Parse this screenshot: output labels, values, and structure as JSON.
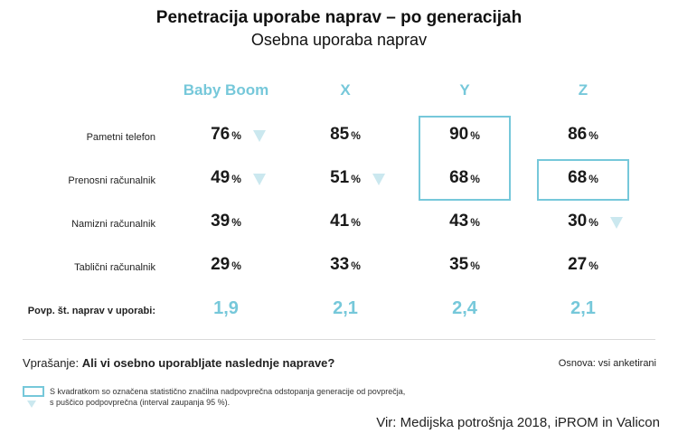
{
  "title": "Penetracija uporabe naprav – po generacijah",
  "subtitle": "Osebna uporaba naprav",
  "chart_data": {
    "type": "table",
    "columns": [
      "Baby Boom",
      "X",
      "Y",
      "Z"
    ],
    "rows": [
      {
        "label": "Pametni telefon",
        "values": [
          76,
          85,
          90,
          86
        ],
        "below_avg": [
          true,
          false,
          false,
          false
        ],
        "above_avg": [
          false,
          false,
          true,
          false
        ]
      },
      {
        "label": "Prenosni računalnik",
        "values": [
          49,
          51,
          68,
          68
        ],
        "below_avg": [
          true,
          true,
          false,
          false
        ],
        "above_avg": [
          false,
          false,
          true,
          true
        ]
      },
      {
        "label": "Namizni računalnik",
        "values": [
          39,
          41,
          43,
          30
        ],
        "below_avg": [
          false,
          false,
          false,
          true
        ],
        "above_avg": [
          false,
          false,
          false,
          false
        ]
      },
      {
        "label": "Tablični računalnik",
        "values": [
          29,
          33,
          35,
          27
        ],
        "below_avg": [
          false,
          false,
          false,
          false
        ],
        "above_avg": [
          false,
          false,
          false,
          false
        ]
      }
    ],
    "unit": "%",
    "avg_row": {
      "label": "Povp. št. naprav v uporabi:",
      "values": [
        "1,9",
        "2,1",
        "2,4",
        "2,1"
      ]
    }
  },
  "question_prefix": "Vprašanje:",
  "question_text": "Ali vi osebno uporabljate naslednje naprave?",
  "basis": "Osnova: vsi anketirani",
  "legend_line1": "S kvadratkom so označena statistično značilna nadpovprečna odstopanja generacije od povprečja,",
  "legend_line2": "s puščico podpovprečna (interval zaupanja 95 %).",
  "source": "Vir: Medijska potrošnja 2018, iPROM in Valicon",
  "colors": {
    "accent": "#76c8da",
    "arrow": "#cbe8ef"
  }
}
